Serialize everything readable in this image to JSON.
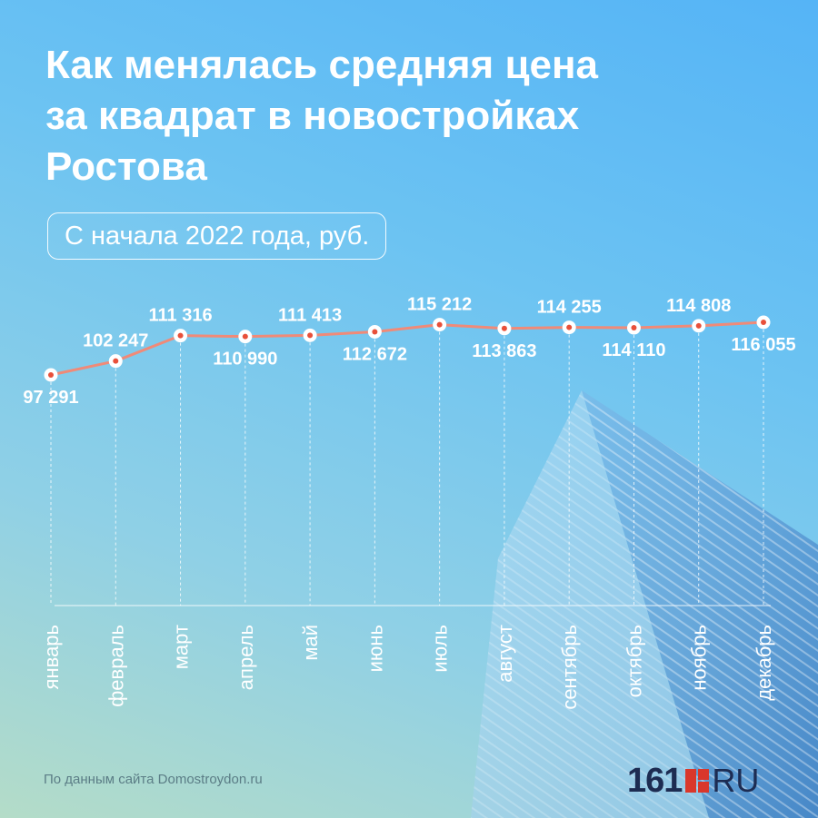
{
  "title_lines": [
    "Как менялась средняя цена",
    "за квадрат в новостройках",
    "Ростова"
  ],
  "subtitle": "С начала 2022 года, руб.",
  "source": "По данным сайта Domostroydon.ru",
  "logo": {
    "number": "161",
    "suffix": "RU",
    "icon": "red-square-mark-icon"
  },
  "colors": {
    "line": "#f08a78",
    "marker_fill": "#ffffff",
    "marker_center": "#e8503a",
    "text": "#ffffff",
    "gridline": "#ffffff"
  },
  "chart_data": {
    "type": "line",
    "categories": [
      "январь",
      "февраль",
      "март",
      "апрель",
      "май",
      "июнь",
      "июль",
      "август",
      "сентябрь",
      "октябрь",
      "ноябрь",
      "декабрь"
    ],
    "values": [
      97291,
      102247,
      111316,
      110990,
      111413,
      112672,
      115212,
      113863,
      114255,
      114110,
      114808,
      116055
    ],
    "labels": [
      "97 291",
      "102 247",
      "111 316",
      "110 990",
      "111 413",
      "112 672",
      "115 212",
      "113 863",
      "114 255",
      "114 110",
      "114 808",
      "116 055"
    ],
    "label_positions": [
      "below",
      "above",
      "above",
      "below",
      "above",
      "below",
      "above",
      "below",
      "above",
      "below",
      "above",
      "below"
    ],
    "title": "Как менялась средняя цена за квадрат в новостройках Ростова",
    "subtitle": "С начала 2022 года, руб.",
    "xlabel": "",
    "ylabel": "",
    "grid": "vertical dashed",
    "legend": "none"
  }
}
